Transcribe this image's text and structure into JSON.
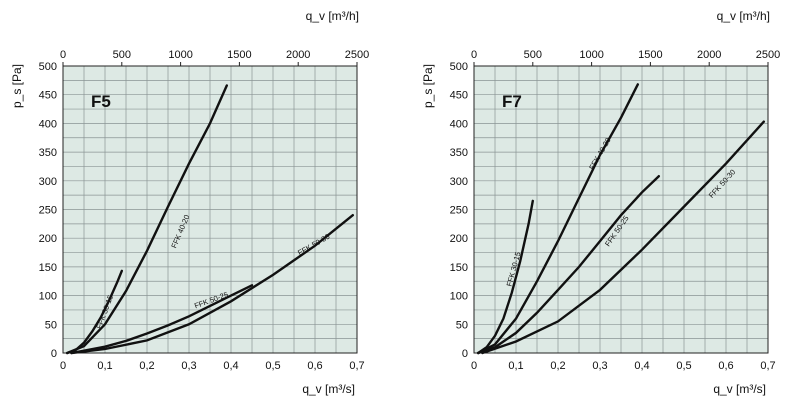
{
  "chart_data": [
    {
      "type": "line",
      "title": "F5",
      "xlabel": "q_v [m³/s]",
      "ylabel": "p_s [Pa]",
      "top_xlabel": "q_v [m³/h]",
      "xlim": [
        0,
        0.7
      ],
      "ylim": [
        0,
        500
      ],
      "top_xlim": [
        0,
        2500
      ],
      "xticks": [
        "0",
        "0,1",
        "0,2",
        "0,3",
        "0,4",
        "0,5",
        "0,6",
        "0,7"
      ],
      "yticks": [
        "0",
        "50",
        "100",
        "150",
        "200",
        "250",
        "300",
        "350",
        "400",
        "450",
        "500"
      ],
      "top_xticks": [
        "0",
        "500",
        "1000",
        "1500",
        "2000",
        "2500"
      ],
      "grid": true,
      "series": [
        {
          "name": "FFK 30-15",
          "x": [
            0.01,
            0.03,
            0.05,
            0.07,
            0.09,
            0.11,
            0.13,
            0.14
          ],
          "y": [
            0,
            5,
            18,
            38,
            62,
            92,
            125,
            143
          ]
        },
        {
          "name": "FFK 40-20",
          "x": [
            0.01,
            0.05,
            0.1,
            0.15,
            0.2,
            0.25,
            0.3,
            0.35,
            0.39
          ],
          "y": [
            0,
            12,
            50,
            108,
            178,
            255,
            330,
            400,
            466
          ]
        },
        {
          "name": "FFK 50-25",
          "x": [
            0.02,
            0.05,
            0.1,
            0.15,
            0.2,
            0.25,
            0.3,
            0.35,
            0.4,
            0.45
          ],
          "y": [
            0,
            4,
            11,
            21,
            34,
            48,
            64,
            82,
            100,
            118
          ]
        },
        {
          "name": "FFK 50-30",
          "x": [
            0.02,
            0.1,
            0.2,
            0.3,
            0.4,
            0.5,
            0.6,
            0.69
          ],
          "y": [
            0,
            7,
            22,
            50,
            90,
            136,
            187,
            240
          ]
        }
      ]
    },
    {
      "type": "line",
      "title": "F7",
      "xlabel": "q_v [m³/s]",
      "ylabel": "p_s [Pa]",
      "top_xlabel": "q_v [m³/h]",
      "xlim": [
        0,
        0.7
      ],
      "ylim": [
        0,
        500
      ],
      "top_xlim": [
        0,
        2500
      ],
      "xticks": [
        "0",
        "0,1",
        "0,2",
        "0,3",
        "0,4",
        "0,5",
        "0,6",
        "0,7"
      ],
      "yticks": [
        "0",
        "50",
        "100",
        "150",
        "200",
        "250",
        "300",
        "350",
        "400",
        "450",
        "500"
      ],
      "top_xticks": [
        "0",
        "500",
        "1000",
        "1500",
        "2000",
        "2500"
      ],
      "grid": true,
      "series": [
        {
          "name": "FFK 30-15",
          "x": [
            0.01,
            0.03,
            0.05,
            0.07,
            0.09,
            0.11,
            0.13,
            0.14
          ],
          "y": [
            0,
            10,
            30,
            60,
            105,
            160,
            225,
            265
          ]
        },
        {
          "name": "FFK 40-20",
          "x": [
            0.01,
            0.05,
            0.1,
            0.15,
            0.2,
            0.25,
            0.3,
            0.35,
            0.39
          ],
          "y": [
            0,
            15,
            60,
            125,
            195,
            270,
            345,
            410,
            468
          ]
        },
        {
          "name": "FFK 50-25",
          "x": [
            0.01,
            0.05,
            0.1,
            0.15,
            0.2,
            0.25,
            0.3,
            0.35,
            0.4,
            0.44
          ],
          "y": [
            0,
            10,
            35,
            70,
            110,
            150,
            195,
            240,
            280,
            308
          ]
        },
        {
          "name": "FFK 50-30",
          "x": [
            0.02,
            0.1,
            0.2,
            0.3,
            0.4,
            0.5,
            0.6,
            0.69
          ],
          "y": [
            0,
            20,
            55,
            110,
            180,
            255,
            330,
            403
          ]
        }
      ]
    }
  ]
}
